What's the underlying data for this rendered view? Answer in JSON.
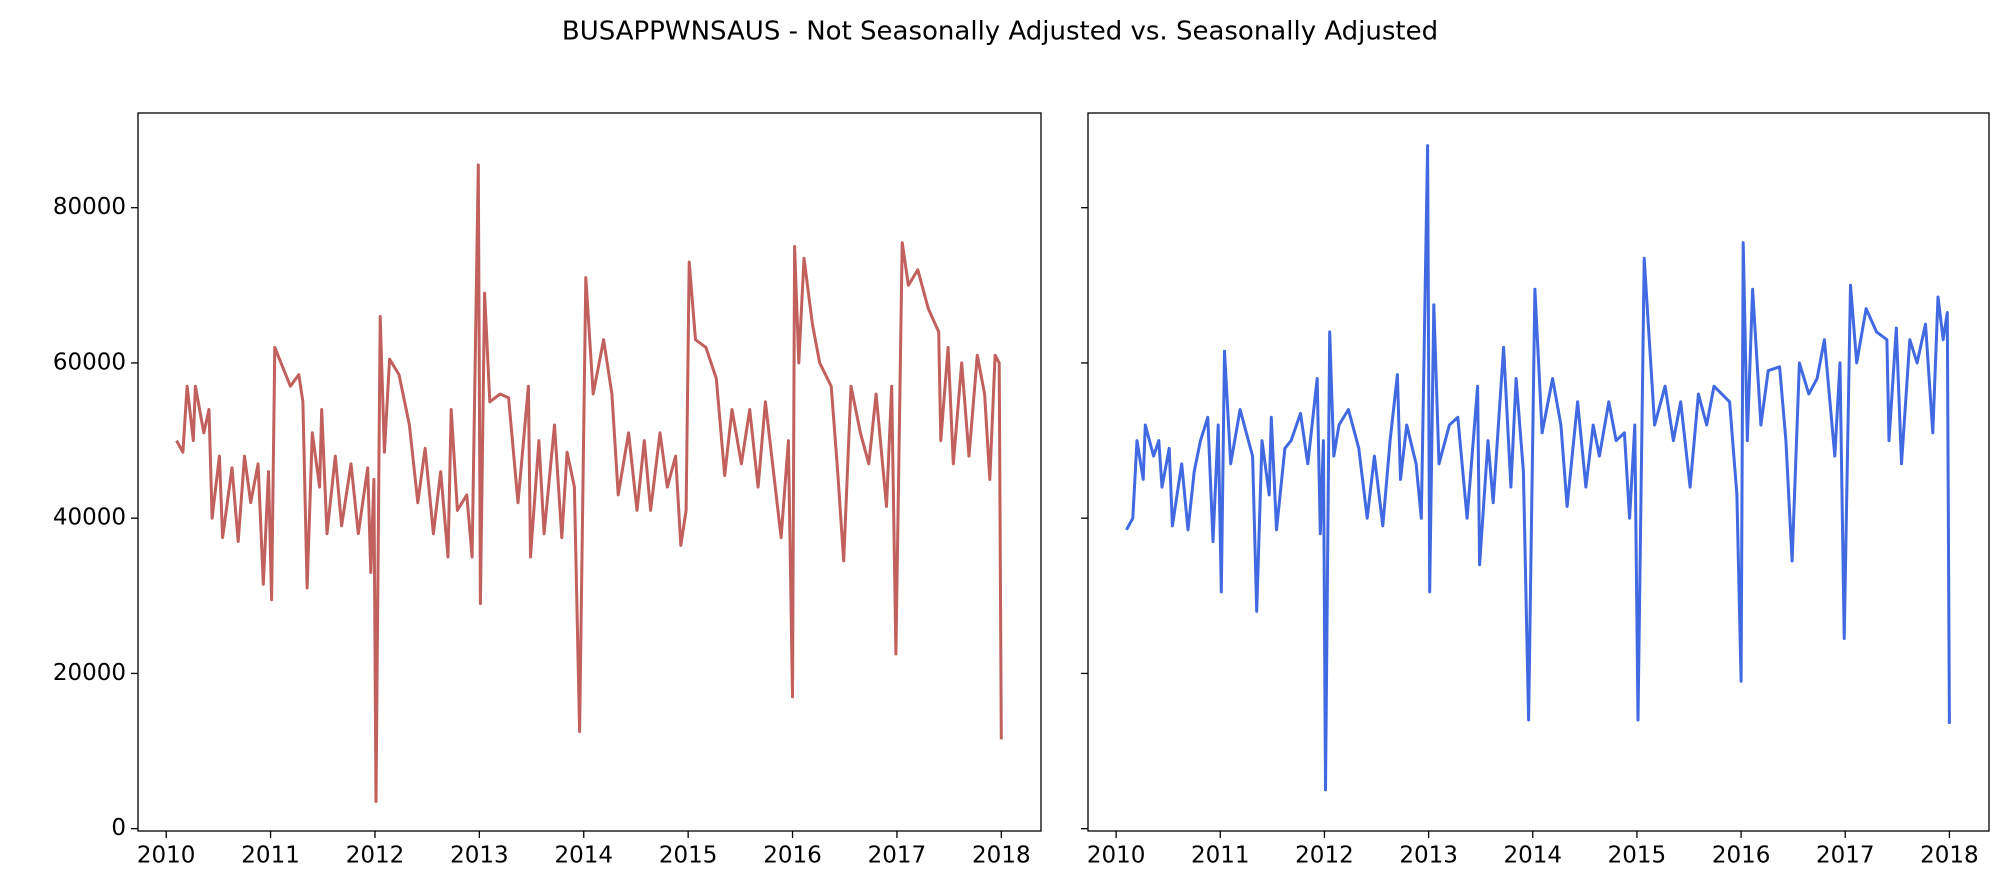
{
  "title": "BUSAPPWNSAUS - Not Seasonally Adjusted vs. Seasonally Adjusted",
  "chart_data": [
    {
      "type": "line",
      "color": "#c1605c",
      "xlim": [
        2009.73,
        2018.38
      ],
      "ylim": [
        -300,
        92200
      ],
      "xticks": [
        2010,
        2011,
        2012,
        2013,
        2014,
        2015,
        2016,
        2017,
        2018
      ],
      "yticks": [
        0,
        20000,
        40000,
        60000,
        80000
      ],
      "ytick_labels": true,
      "grid": false,
      "x": [
        2010.1,
        2010.16,
        2010.2,
        2010.26,
        2010.28,
        2010.36,
        2010.41,
        2010.44,
        2010.51,
        2010.54,
        2010.63,
        2010.69,
        2010.75,
        2010.81,
        2010.88,
        2010.93,
        2010.98,
        2011.01,
        2011.04,
        2011.1,
        2011.19,
        2011.27,
        2011.31,
        2011.35,
        2011.4,
        2011.47,
        2011.49,
        2011.54,
        2011.62,
        2011.68,
        2011.77,
        2011.84,
        2011.93,
        2011.96,
        2011.99,
        2012.01,
        2012.05,
        2012.09,
        2012.14,
        2012.23,
        2012.33,
        2012.41,
        2012.48,
        2012.56,
        2012.63,
        2012.7,
        2012.73,
        2012.79,
        2012.88,
        2012.93,
        2012.99,
        2013.01,
        2013.05,
        2013.1,
        2013.2,
        2013.28,
        2013.37,
        2013.47,
        2013.49,
        2013.57,
        2013.62,
        2013.72,
        2013.79,
        2013.84,
        2013.91,
        2013.96,
        2014.02,
        2014.09,
        2014.19,
        2014.27,
        2014.33,
        2014.43,
        2014.51,
        2014.58,
        2014.64,
        2014.73,
        2014.8,
        2014.88,
        2014.93,
        2014.98,
        2015.01,
        2015.07,
        2015.17,
        2015.27,
        2015.35,
        2015.42,
        2015.51,
        2015.59,
        2015.67,
        2015.74,
        2015.89,
        2015.96,
        2016.0,
        2016.02,
        2016.06,
        2016.11,
        2016.19,
        2016.26,
        2016.37,
        2016.43,
        2016.49,
        2016.56,
        2016.65,
        2016.73,
        2016.8,
        2016.9,
        2016.95,
        2016.99,
        2017.05,
        2017.11,
        2017.2,
        2017.3,
        2017.4,
        2017.42,
        2017.49,
        2017.54,
        2017.62,
        2017.69,
        2017.77,
        2017.84,
        2017.89,
        2017.94,
        2017.98,
        2018.0
      ],
      "values": [
        50000,
        48500,
        57000,
        50000,
        57000,
        51000,
        54000,
        40000,
        48000,
        37500,
        46500,
        37000,
        48000,
        42000,
        47000,
        31500,
        46000,
        29500,
        62000,
        60000,
        57000,
        58500,
        55000,
        31000,
        51000,
        44000,
        54000,
        38000,
        48000,
        39000,
        47000,
        38000,
        46500,
        33000,
        45000,
        3500,
        66000,
        48500,
        60500,
        58500,
        52000,
        42000,
        49000,
        38000,
        46000,
        35000,
        54000,
        41000,
        43000,
        35000,
        85500,
        29000,
        69000,
        55000,
        56000,
        55500,
        42000,
        57000,
        35000,
        50000,
        38000,
        52000,
        37500,
        48500,
        44000,
        12500,
        71000,
        56000,
        63000,
        56000,
        43000,
        51000,
        41000,
        50000,
        41000,
        51000,
        44000,
        48000,
        36500,
        41000,
        73000,
        63000,
        62000,
        58000,
        45500,
        54000,
        47000,
        54000,
        44000,
        55000,
        37500,
        50000,
        17000,
        75000,
        60000,
        73500,
        65000,
        60000,
        57000,
        46500,
        34500,
        57000,
        51000,
        47000,
        56000,
        41500,
        57000,
        22500,
        75500,
        70000,
        72000,
        67000,
        64000,
        50000,
        62000,
        47000,
        60000,
        48000,
        61000,
        56000,
        45000,
        61000,
        60000,
        11500
      ]
    },
    {
      "type": "line",
      "color": "#4169e1",
      "xlim": [
        2009.73,
        2018.38
      ],
      "ylim": [
        -300,
        92200
      ],
      "xticks": [
        2010,
        2011,
        2012,
        2013,
        2014,
        2015,
        2016,
        2017,
        2018
      ],
      "yticks": [
        0,
        20000,
        40000,
        60000,
        80000
      ],
      "ytick_labels": false,
      "grid": false,
      "x": [
        2010.1,
        2010.16,
        2010.2,
        2010.26,
        2010.28,
        2010.36,
        2010.41,
        2010.44,
        2010.51,
        2010.54,
        2010.63,
        2010.69,
        2010.75,
        2010.81,
        2010.88,
        2010.93,
        2010.98,
        2011.01,
        2011.04,
        2011.1,
        2011.19,
        2011.27,
        2011.31,
        2011.35,
        2011.4,
        2011.47,
        2011.49,
        2011.54,
        2011.62,
        2011.68,
        2011.77,
        2011.84,
        2011.93,
        2011.96,
        2011.99,
        2012.01,
        2012.05,
        2012.09,
        2012.14,
        2012.23,
        2012.33,
        2012.41,
        2012.48,
        2012.56,
        2012.63,
        2012.7,
        2012.73,
        2012.79,
        2012.88,
        2012.93,
        2012.99,
        2013.01,
        2013.05,
        2013.1,
        2013.2,
        2013.28,
        2013.37,
        2013.47,
        2013.49,
        2013.57,
        2013.62,
        2013.72,
        2013.79,
        2013.84,
        2013.91,
        2013.96,
        2014.02,
        2014.09,
        2014.19,
        2014.27,
        2014.33,
        2014.43,
        2014.51,
        2014.58,
        2014.64,
        2014.73,
        2014.8,
        2014.88,
        2014.93,
        2014.98,
        2015.01,
        2015.07,
        2015.17,
        2015.27,
        2015.35,
        2015.42,
        2015.51,
        2015.59,
        2015.67,
        2015.74,
        2015.89,
        2015.96,
        2016.0,
        2016.02,
        2016.06,
        2016.11,
        2016.19,
        2016.26,
        2016.37,
        2016.43,
        2016.49,
        2016.56,
        2016.65,
        2016.73,
        2016.8,
        2016.9,
        2016.95,
        2016.99,
        2017.05,
        2017.11,
        2017.2,
        2017.3,
        2017.4,
        2017.42,
        2017.49,
        2017.54,
        2017.62,
        2017.69,
        2017.77,
        2017.84,
        2017.89,
        2017.94,
        2017.98,
        2018.0
      ],
      "values": [
        38500,
        40000,
        50000,
        45000,
        52000,
        48000,
        50000,
        44000,
        49000,
        39000,
        47000,
        38500,
        46000,
        50000,
        53000,
        37000,
        52000,
        30500,
        61500,
        47000,
        54000,
        50000,
        48000,
        28000,
        50000,
        43000,
        53000,
        38500,
        49000,
        50000,
        53500,
        47000,
        58000,
        38000,
        50000,
        5000,
        64000,
        48000,
        52000,
        54000,
        49000,
        40000,
        48000,
        39000,
        50000,
        58500,
        45000,
        52000,
        47000,
        40000,
        88000,
        30500,
        67500,
        47000,
        52000,
        53000,
        40000,
        57000,
        34000,
        50000,
        42000,
        62000,
        44000,
        58000,
        46000,
        14000,
        69500,
        51000,
        58000,
        52000,
        41500,
        55000,
        44000,
        52000,
        48000,
        55000,
        50000,
        51000,
        40000,
        52000,
        14000,
        73500,
        52000,
        57000,
        50000,
        55000,
        44000,
        56000,
        52000,
        57000,
        55000,
        43000,
        19000,
        75500,
        50000,
        69500,
        52000,
        59000,
        59500,
        50000,
        34500,
        60000,
        56000,
        58000,
        63000,
        48000,
        60000,
        24500,
        70000,
        60000,
        67000,
        64000,
        63000,
        50000,
        64500,
        47000,
        63000,
        60000,
        65000,
        51000,
        68500,
        63000,
        66500,
        13500
      ]
    }
  ]
}
